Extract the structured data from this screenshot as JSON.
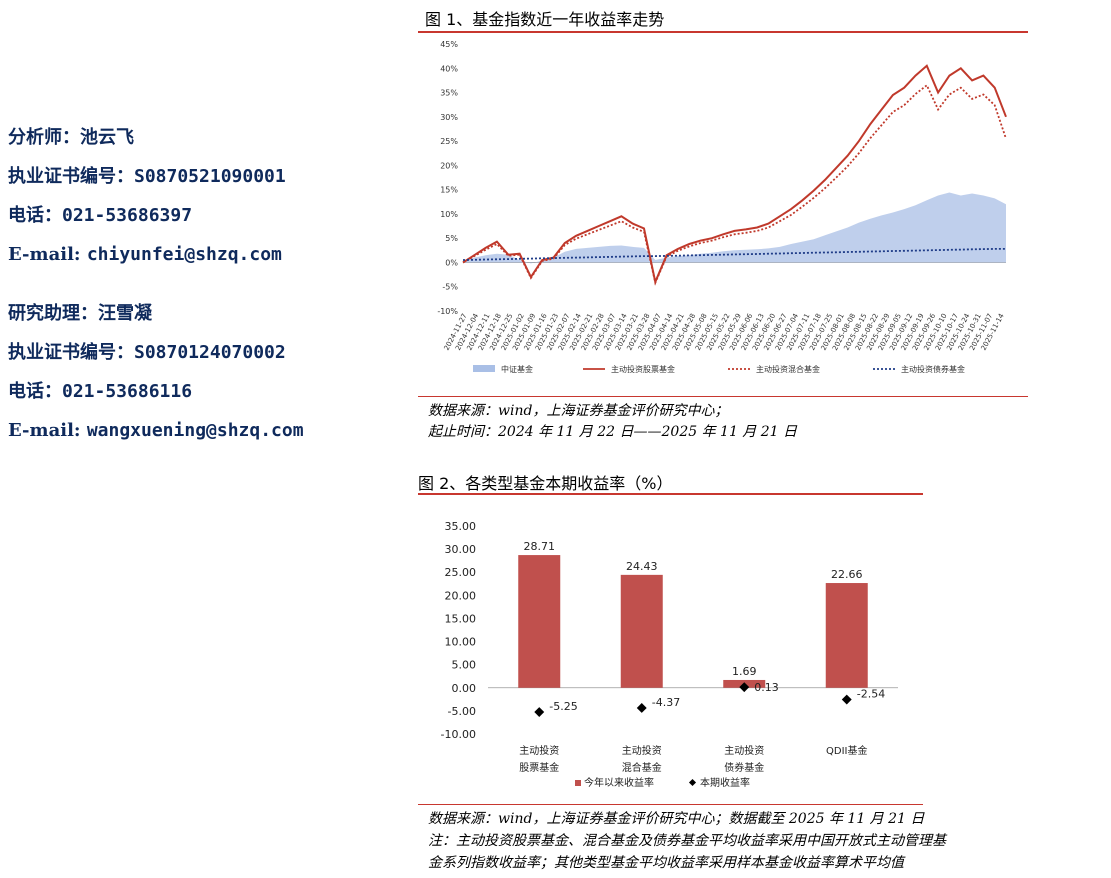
{
  "sidebar": {
    "analyst_label": "分析师：",
    "analyst_name": "池云飞",
    "analyst_cert_label": "执业证书编号：",
    "analyst_cert": "S0870521090001",
    "analyst_phone_label": "电话：",
    "analyst_phone": "021-53686397",
    "analyst_email_label": "E-mail: ",
    "analyst_email": "chiyunfei@shzq.com",
    "assistant_label": "研究助理：",
    "assistant_name": "汪雪凝",
    "assistant_cert_label": "执业证书编号：",
    "assistant_cert": "S0870124070002",
    "assistant_phone_label": "电话：",
    "assistant_phone": "021-53686116",
    "assistant_email_label": "E-mail: ",
    "assistant_email": "wangxuening@shzq.com"
  },
  "figure1": {
    "title": "图 1、基金指数近一年收益率走势",
    "source_line1": "数据来源：wind，上海证券基金评价研究中心；",
    "source_line2": "起止时间：2024 年 11 月 22 日——2025 年 11 月 21 日"
  },
  "figure2": {
    "title": "图 2、各类型基金本期收益率（%）",
    "source_line1": "数据来源：wind，上海证券基金评价研究中心；数据截至 2025 年 11 月 21 日",
    "source_line2": "注：主动投资股票基金、混合基金及债券基金平均收益率采用中国开放式主动管理基",
    "source_line3": "金系列指数收益率；其他类型基金平均收益率采用样本基金收益率算术平均值"
  },
  "chart_data": [
    {
      "type": "line",
      "ylim": [
        -10,
        45
      ],
      "yticks": [
        "-10%",
        "-5%",
        "0%",
        "5%",
        "10%",
        "15%",
        "20%",
        "25%",
        "30%",
        "35%",
        "40%",
        "45%"
      ],
      "ytick_values": [
        -10,
        -5,
        0,
        5,
        10,
        15,
        20,
        25,
        30,
        35,
        40,
        45
      ],
      "x_tick_labels": [
        "2024-11-27",
        "2024-12-04",
        "2024-12-11",
        "2024-12-18",
        "2024-12-25",
        "2025-01-02",
        "2025-01-09",
        "2025-01-16",
        "2025-01-23",
        "2025-02-07",
        "2025-02-14",
        "2025-02-21",
        "2025-02-28",
        "2025-03-07",
        "2025-03-14",
        "2025-03-21",
        "2025-03-28",
        "2025-04-07",
        "2025-04-14",
        "2025-04-21",
        "2025-04-28",
        "2025-05-08",
        "2025-05-15",
        "2025-05-22",
        "2025-05-29",
        "2025-06-06",
        "2025-06-13",
        "2025-06-20",
        "2025-06-27",
        "2025-07-04",
        "2025-07-11",
        "2025-07-18",
        "2025-07-25",
        "2025-08-01",
        "2025-08-08",
        "2025-08-15",
        "2025-08-22",
        "2025-08-29",
        "2025-09-05",
        "2025-09-12",
        "2025-09-19",
        "2025-09-26",
        "2025-10-10",
        "2025-10-17",
        "2025-10-24",
        "2025-10-31",
        "2025-11-07",
        "2025-11-14"
      ],
      "x": [
        0,
        1,
        2,
        3,
        4,
        5,
        6,
        7,
        8,
        9,
        10,
        11,
        12,
        13,
        14,
        15,
        16,
        17,
        18,
        19,
        20,
        21,
        22,
        23,
        24,
        25,
        26,
        27,
        28,
        29,
        30,
        31,
        32,
        33,
        34,
        35,
        36,
        37,
        38,
        39,
        40,
        41,
        42,
        43,
        44,
        45,
        46,
        47,
        48
      ],
      "series": [
        {
          "name": "中证基金",
          "style": "area",
          "color": "#a9bfe6",
          "values": [
            0.3,
            1.0,
            1.5,
            1.8,
            1.6,
            0.5,
            -0.2,
            0.4,
            1.0,
            2.2,
            2.8,
            3.0,
            3.2,
            3.4,
            3.5,
            3.2,
            3.0,
            0.5,
            1.0,
            1.3,
            1.5,
            1.8,
            2.0,
            2.3,
            2.5,
            2.6,
            2.7,
            2.9,
            3.2,
            3.8,
            4.3,
            4.8,
            5.6,
            6.4,
            7.2,
            8.2,
            9.0,
            9.7,
            10.3,
            11.0,
            11.8,
            12.8,
            13.8,
            14.4,
            13.8,
            14.2,
            13.8,
            13.2,
            12.0
          ]
        },
        {
          "name": "主动投资股票基金",
          "style": "solid",
          "color": "#c0392b",
          "values": [
            0.0,
            1.5,
            3.0,
            4.3,
            1.6,
            1.8,
            -3.0,
            0.5,
            1.0,
            4.0,
            5.5,
            6.5,
            7.5,
            8.5,
            9.5,
            8.0,
            7.0,
            -4.0,
            1.5,
            2.8,
            3.8,
            4.5,
            5.0,
            5.8,
            6.5,
            6.8,
            7.2,
            8.0,
            9.5,
            11.0,
            12.8,
            14.8,
            17.0,
            19.5,
            22.0,
            25.0,
            28.5,
            31.5,
            34.5,
            36.0,
            38.5,
            40.5,
            35.0,
            38.5,
            40.0,
            37.5,
            38.5,
            36.0,
            30.0
          ]
        },
        {
          "name": "主动投资混合基金",
          "style": "dotted",
          "color": "#c0392b",
          "values": [
            0.0,
            1.3,
            2.6,
            3.8,
            1.4,
            1.6,
            -3.2,
            0.3,
            0.8,
            3.6,
            4.9,
            5.8,
            6.7,
            7.6,
            8.5,
            7.2,
            6.3,
            -4.2,
            1.2,
            2.4,
            3.3,
            4.0,
            4.5,
            5.2,
            5.8,
            6.1,
            6.5,
            7.2,
            8.5,
            9.8,
            11.5,
            13.3,
            15.3,
            17.5,
            19.8,
            22.5,
            25.6,
            28.3,
            31.0,
            32.4,
            34.7,
            36.5,
            31.5,
            34.6,
            36.0,
            33.7,
            34.6,
            32.4,
            25.5
          ]
        },
        {
          "name": "主动投资债券基金",
          "style": "dotted",
          "color": "#1f3c88",
          "values": [
            0.5,
            0.55,
            0.6,
            0.65,
            0.7,
            0.75,
            0.8,
            0.85,
            0.9,
            0.95,
            1.0,
            1.05,
            1.1,
            1.15,
            1.2,
            1.25,
            1.3,
            1.3,
            1.35,
            1.4,
            1.45,
            1.5,
            1.55,
            1.6,
            1.65,
            1.7,
            1.75,
            1.8,
            1.85,
            1.9,
            1.95,
            2.0,
            2.05,
            2.1,
            2.15,
            2.2,
            2.25,
            2.3,
            2.35,
            2.4,
            2.45,
            2.5,
            2.55,
            2.6,
            2.65,
            2.7,
            2.75,
            2.8,
            2.8
          ]
        }
      ]
    },
    {
      "type": "bar",
      "categories": [
        [
          "主动投资",
          "股票基金"
        ],
        [
          "主动投资",
          "混合基金"
        ],
        [
          "主动投资",
          "债券基金"
        ],
        [
          "QDII基金"
        ]
      ],
      "ylim": [
        -10,
        35
      ],
      "yticks": [
        "-10.00",
        "-5.00",
        "0.00",
        "5.00",
        "10.00",
        "15.00",
        "20.00",
        "25.00",
        "30.00",
        "35.00"
      ],
      "ytick_values": [
        -10,
        -5,
        0,
        5,
        10,
        15,
        20,
        25,
        30,
        35
      ],
      "series": [
        {
          "name": "今年以来收益率",
          "style": "bar",
          "color": "#c0504d",
          "values": [
            28.71,
            24.43,
            1.69,
            22.66
          ],
          "labels": [
            "28.71",
            "24.43",
            "1.69",
            "22.66"
          ]
        },
        {
          "name": "本期收益率",
          "style": "marker",
          "color": "#000000",
          "values": [
            -5.25,
            -4.37,
            0.13,
            -2.54
          ],
          "labels": [
            "-5.25",
            "-4.37",
            "0.13",
            "-2.54"
          ]
        }
      ]
    }
  ]
}
